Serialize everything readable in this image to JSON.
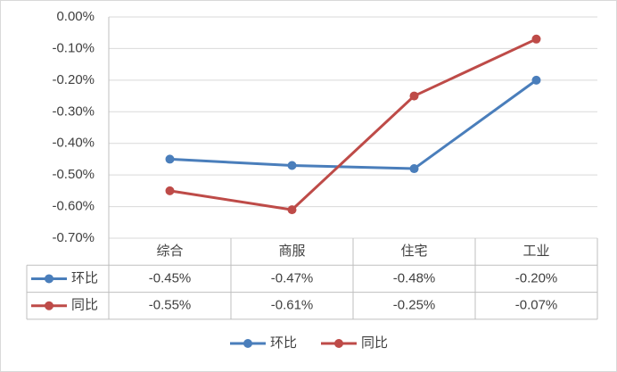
{
  "chart_data": {
    "type": "line",
    "categories": [
      "综合",
      "商服",
      "住宅",
      "工业"
    ],
    "series": [
      {
        "name": "环比",
        "color": "#4a7ebb",
        "values": [
          -0.45,
          -0.47,
          -0.48,
          -0.2
        ],
        "value_labels": [
          "-0.45%",
          "-0.47%",
          "-0.48%",
          "-0.20%"
        ]
      },
      {
        "name": "同比",
        "color": "#be4b48",
        "values": [
          -0.55,
          -0.61,
          -0.25,
          -0.07
        ],
        "value_labels": [
          "-0.55%",
          "-0.61%",
          "-0.25%",
          "-0.07%"
        ]
      }
    ],
    "ylim": [
      -0.7,
      0
    ],
    "yticks": [
      {
        "value": 0,
        "label": "0.00%"
      },
      {
        "value": -0.1,
        "label": "-0.10%"
      },
      {
        "value": -0.2,
        "label": "-0.20%"
      },
      {
        "value": -0.3,
        "label": "-0.30%"
      },
      {
        "value": -0.4,
        "label": "-0.40%"
      },
      {
        "value": -0.5,
        "label": "-0.50%"
      },
      {
        "value": -0.6,
        "label": "-0.60%"
      },
      {
        "value": -0.7,
        "label": "-0.70%"
      }
    ],
    "grid": true,
    "data_table": true,
    "legend": "bottom"
  }
}
